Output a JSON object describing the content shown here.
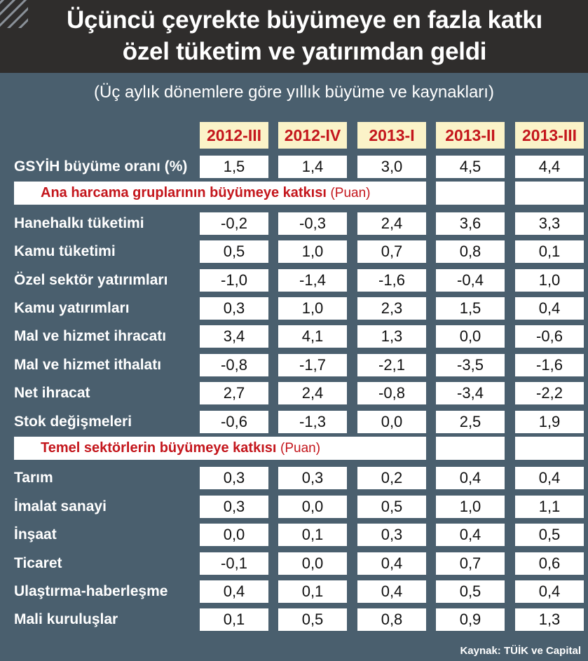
{
  "title": {
    "line1": "Üçüncü çeyrekte büyümeye en fazla katkı",
    "line2": "özel tüketim ve yatırımdan geldi"
  },
  "subtitle": "(Üç aylık dönemlere göre yıllık büyüme ve kaynakları)",
  "source": "Kaynak: TÜİK ve Capital",
  "colors": {
    "background": "#4a5f6e",
    "title_bar": "#2f2d2c",
    "header_cell": "#fbf3c8",
    "accent_red": "#c4161c"
  },
  "chart_data": {
    "type": "table",
    "columns": [
      "2012-III",
      "2012-IV",
      "2013-I",
      "2013-II",
      "2013-III"
    ],
    "gdp_row": {
      "label": "GSYİH büyüme oranı (%)",
      "values": [
        "1,5",
        "1,4",
        "3,0",
        "4,5",
        "4,4"
      ]
    },
    "sections": [
      {
        "title": "Ana harcama gruplarının büyümeye katkısı",
        "unit": "(Puan)",
        "rows": [
          {
            "label": "Hanehalkı tüketimi",
            "values": [
              "-0,2",
              "-0,3",
              "2,4",
              "3,6",
              "3,3"
            ]
          },
          {
            "label": "Kamu tüketimi",
            "values": [
              "0,5",
              "1,0",
              "0,7",
              "0,8",
              "0,1"
            ]
          },
          {
            "label": "Özel sektör yatırımları",
            "values": [
              "-1,0",
              "-1,4",
              "-1,6",
              "-0,4",
              "1,0"
            ]
          },
          {
            "label": "Kamu yatırımları",
            "values": [
              "0,3",
              "1,0",
              "2,3",
              "1,5",
              "0,4"
            ]
          },
          {
            "label": "Mal ve hizmet ihracatı",
            "values": [
              "3,4",
              "4,1",
              "1,3",
              "0,0",
              "-0,6"
            ]
          },
          {
            "label": "Mal ve hizmet ithalatı",
            "values": [
              "-0,8",
              "-1,7",
              "-2,1",
              "-3,5",
              "-1,6"
            ]
          },
          {
            "label": "Net ihracat",
            "values": [
              "2,7",
              "2,4",
              "-0,8",
              "-3,4",
              "-2,2"
            ]
          },
          {
            "label": "Stok değişmeleri",
            "values": [
              "-0,6",
              "-1,3",
              "0,0",
              "2,5",
              "1,9"
            ]
          }
        ]
      },
      {
        "title": "Temel sektörlerin büyümeye katkısı",
        "unit": "(Puan)",
        "rows": [
          {
            "label": "Tarım",
            "values": [
              "0,3",
              "0,3",
              "0,2",
              "0,4",
              "0,4"
            ]
          },
          {
            "label": "İmalat sanayi",
            "values": [
              "0,3",
              "0,0",
              "0,5",
              "1,0",
              "1,1"
            ]
          },
          {
            "label": "İnşaat",
            "values": [
              "0,0",
              "0,1",
              "0,3",
              "0,4",
              "0,5"
            ]
          },
          {
            "label": "Ticaret",
            "values": [
              "-0,1",
              "0,0",
              "0,4",
              "0,7",
              "0,6"
            ]
          },
          {
            "label": "Ulaştırma-haberleşme",
            "values": [
              "0,4",
              "0,1",
              "0,4",
              "0,5",
              "0,4"
            ]
          },
          {
            "label": "Mali kuruluşlar",
            "values": [
              "0,1",
              "0,5",
              "0,8",
              "0,9",
              "1,3"
            ]
          }
        ]
      }
    ]
  }
}
